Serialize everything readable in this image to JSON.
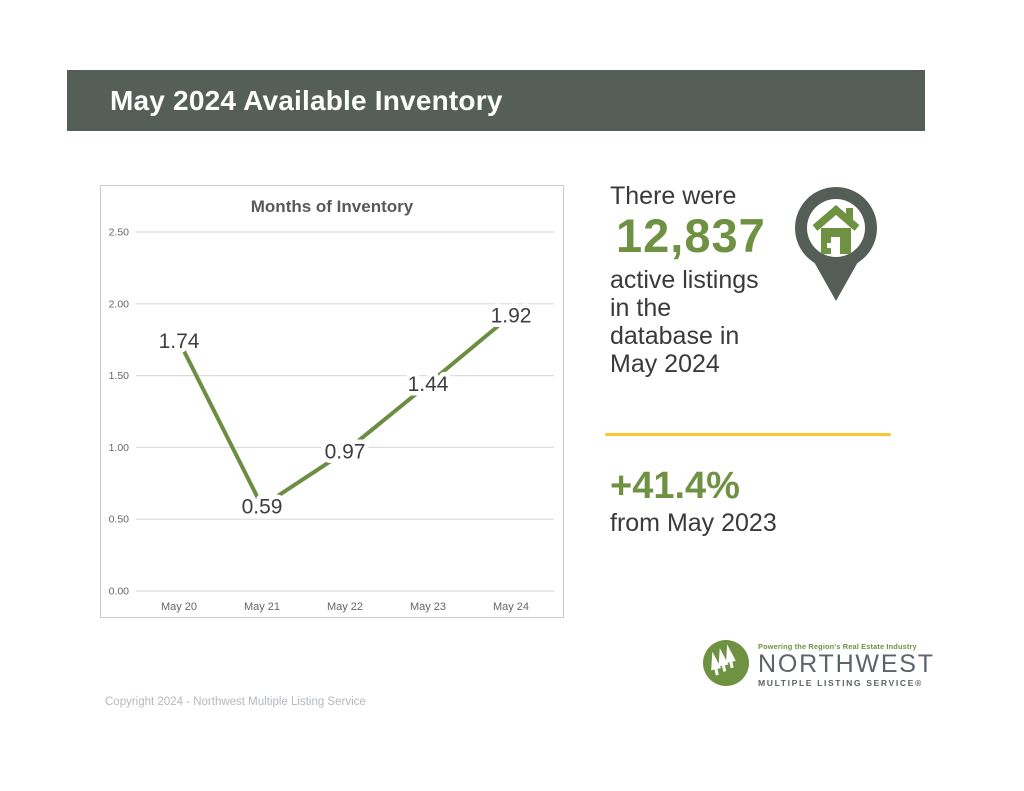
{
  "theme": {
    "header_dark": "#565E58",
    "pin_dark": "#545D56",
    "accent_green": "#6F9242",
    "divider_yellow": "#FBC52B",
    "logo_gray": "#5C6369"
  },
  "header": {
    "title": "May 2024 Available Inventory"
  },
  "chart_data": {
    "type": "line",
    "title": "Months of Inventory",
    "categories": [
      "May 20",
      "May 21",
      "May 22",
      "May 23",
      "May 24"
    ],
    "values": [
      1.74,
      0.59,
      0.97,
      1.44,
      1.92
    ],
    "y_ticks": [
      "2.50",
      "2.00",
      "1.50",
      "1.00",
      "0.50",
      "0.00"
    ],
    "ylim": [
      0,
      2.5
    ],
    "xlabel": "",
    "ylabel": "",
    "grid": true,
    "legend": "none",
    "line_color": "#6C8E42",
    "data_label_color": "#3E3E3E"
  },
  "stats": {
    "intro": "There were",
    "count": "12,837",
    "description_lines": [
      "active listings",
      "in the",
      "database in",
      "May 2024"
    ]
  },
  "change": {
    "percent": "+41.4%",
    "caption": "from May 2023"
  },
  "logo": {
    "tagline": "Powering the Region's Real Estate Industry",
    "name": "NORTHWEST",
    "subtitle": "MULTIPLE LISTING SERVICE®"
  },
  "footer": {
    "copyright": "Copyright 2024 - Northwest Multiple Listing Service"
  }
}
